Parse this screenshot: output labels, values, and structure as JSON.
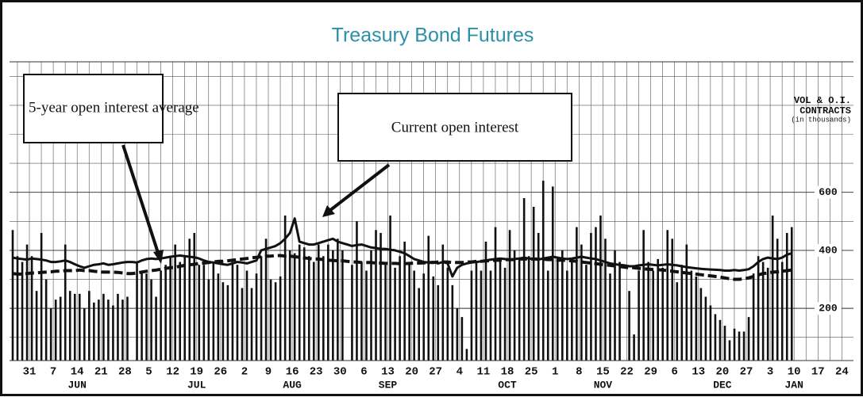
{
  "chart_data": {
    "type": "bar",
    "title": "Treasury Bond Futures",
    "axis_title": [
      "VOL & O.I.",
      "CONTRACTS",
      "(in thousands)"
    ],
    "categories": [
      "31",
      null,
      null,
      null,
      null,
      "7",
      null,
      null,
      null,
      null,
      "14",
      null,
      null,
      null,
      null,
      "21",
      null,
      null,
      null,
      null,
      "28",
      null,
      null,
      null,
      null,
      "5",
      null,
      null,
      null,
      null,
      "12",
      null,
      null,
      null,
      null,
      "19",
      null,
      null,
      null,
      null,
      "26",
      null,
      null,
      null,
      null,
      "2",
      null,
      null,
      null,
      null,
      "9",
      null,
      null,
      null,
      null,
      "16",
      null,
      null,
      null,
      null,
      "23",
      null,
      null,
      null,
      null,
      "30",
      null,
      null,
      null,
      null,
      "6",
      null,
      null,
      null,
      null,
      "13",
      null,
      null,
      null,
      null,
      "20",
      null,
      null,
      null,
      null,
      "27",
      null,
      null,
      null,
      null,
      "4",
      null,
      null,
      null,
      null,
      "11",
      null,
      null,
      null,
      null,
      "18",
      null,
      null,
      null,
      null,
      "25",
      null,
      null,
      null,
      null,
      "1",
      null,
      null,
      null,
      null,
      "8",
      null,
      null,
      null,
      null,
      "15",
      null,
      null,
      null,
      null,
      "22",
      null,
      null,
      null,
      null,
      "29",
      null,
      null,
      null,
      null,
      "6",
      null,
      null,
      null,
      null,
      "13",
      null,
      null,
      null,
      null,
      "20",
      null,
      null,
      null,
      null,
      "27",
      null,
      null,
      null,
      null,
      "3",
      null,
      null,
      null,
      null,
      "10",
      null,
      null,
      null,
      null,
      "17",
      null,
      null,
      null,
      null,
      "24",
      null,
      null,
      null,
      null
    ],
    "month_labels": [
      null,
      null,
      "JUN",
      null,
      null,
      null,
      null,
      "JUL",
      null,
      null,
      null,
      "AUG",
      null,
      null,
      null,
      "SEP",
      null,
      null,
      null,
      null,
      "OCT",
      null,
      null,
      null,
      "NOV",
      null,
      null,
      null,
      null,
      "DEC",
      null,
      null,
      "JAN",
      null,
      null
    ],
    "series": [
      {
        "type": "bar",
        "color": "#111111",
        "values": [
          470,
          380,
          360,
          420,
          380,
          260,
          460,
          300,
          200,
          230,
          240,
          420,
          260,
          250,
          250,
          200,
          260,
          220,
          230,
          250,
          230,
          210,
          250,
          230,
          240,
          null,
          360,
          330,
          320,
          300,
          240,
          330,
          350,
          380,
          420,
          360,
          380,
          440,
          460,
          350,
          350,
          300,
          360,
          320,
          290,
          280,
          360,
          350,
          270,
          330,
          270,
          320,
          380,
          440,
          300,
          290,
          310,
          520,
          400,
          390,
          420,
          410,
          380,
          360,
          420,
          380,
          420,
          400,
          440,
          400,
          null,
          350,
          500,
          360,
          330,
          400,
          470,
          460,
          350,
          520,
          340,
          380,
          430,
          360,
          330,
          270,
          320,
          450,
          310,
          280,
          420,
          340,
          280,
          200,
          170,
          60,
          330,
          360,
          330,
          430,
          330,
          480,
          370,
          340,
          470,
          400,
          370,
          580,
          380,
          550,
          460,
          640,
          330,
          620,
          370,
          400,
          330,
          370,
          480,
          420,
          350,
          460,
          480,
          520,
          440,
          320,
          400,
          360,
          null,
          260,
          110,
          330,
          470,
          360,
          330,
          370,
          340,
          470,
          440,
          290,
          350,
          420,
          330,
          310,
          270,
          240,
          210,
          180,
          160,
          140,
          90,
          130,
          120,
          120,
          170,
          320,
          380,
          360,
          340,
          520,
          440,
          360,
          460,
          480,
          null,
          null,
          null,
          null,
          null,
          null,
          null,
          null,
          null,
          null,
          null
        ]
      },
      {
        "type": "line",
        "name": "Current open interest",
        "style": "solid",
        "color": "#111111",
        "values": [
          375,
          372,
          370,
          368,
          372,
          370,
          368,
          365,
          360,
          360,
          362,
          365,
          360,
          352,
          345,
          340,
          345,
          350,
          352,
          355,
          350,
          352,
          355,
          358,
          360,
          360,
          358,
          365,
          370,
          372,
          370,
          372,
          375,
          378,
          380,
          382,
          380,
          378,
          376,
          372,
          365,
          360,
          358,
          355,
          352,
          350,
          355,
          360,
          358,
          355,
          360,
          365,
          400,
          405,
          410,
          415,
          425,
          440,
          460,
          510,
          430,
          425,
          420,
          420,
          425,
          430,
          435,
          440,
          430,
          425,
          420,
          415,
          418,
          420,
          415,
          410,
          408,
          405,
          405,
          402,
          400,
          395,
          390,
          380,
          370,
          365,
          360,
          358,
          360,
          355,
          360,
          355,
          310,
          340,
          350,
          355,
          358,
          360,
          362,
          365,
          368,
          370,
          372,
          370,
          368,
          370,
          372,
          375,
          372,
          370,
          368,
          372,
          375,
          378,
          375,
          372,
          370,
          372,
          375,
          378,
          375,
          372,
          370,
          365,
          360,
          355,
          352,
          350,
          348,
          345,
          345,
          348,
          350,
          352,
          350,
          348,
          350,
          352,
          350,
          348,
          345,
          342,
          340,
          338,
          336,
          335,
          334,
          333,
          332,
          330,
          330,
          332,
          330,
          332,
          335,
          345,
          360,
          370,
          375,
          372,
          370,
          375,
          385,
          390,
          null,
          null,
          null,
          null,
          null,
          null,
          null,
          null,
          null,
          null,
          null
        ]
      },
      {
        "type": "line",
        "name": "5-year open interest average",
        "style": "dashed",
        "color": "#111111",
        "values": [
          320,
          318,
          318,
          320,
          322,
          322,
          324,
          325,
          326,
          328,
          328,
          330,
          330,
          330,
          332,
          330,
          330,
          328,
          326,
          325,
          325,
          325,
          324,
          322,
          320,
          320,
          322,
          325,
          328,
          330,
          332,
          335,
          338,
          340,
          342,
          345,
          348,
          350,
          352,
          355,
          356,
          358,
          360,
          362,
          362,
          364,
          366,
          368,
          370,
          372,
          374,
          376,
          378,
          380,
          380,
          382,
          382,
          380,
          380,
          378,
          376,
          374,
          372,
          370,
          370,
          368,
          366,
          365,
          364,
          364,
          362,
          360,
          360,
          358,
          358,
          358,
          356,
          356,
          355,
          355,
          355,
          354,
          354,
          355,
          356,
          356,
          357,
          358,
          358,
          360,
          360,
          360,
          358,
          358,
          358,
          360,
          360,
          362,
          362,
          364,
          364,
          366,
          366,
          368,
          368,
          368,
          370,
          370,
          370,
          370,
          370,
          370,
          368,
          368,
          366,
          366,
          365,
          364,
          362,
          360,
          358,
          356,
          354,
          352,
          350,
          348,
          346,
          344,
          342,
          340,
          340,
          338,
          336,
          335,
          334,
          333,
          332,
          330,
          328,
          326,
          324,
          322,
          320,
          318,
          316,
          314,
          312,
          310,
          308,
          305,
          302,
          300,
          300,
          302,
          305,
          310,
          315,
          320,
          322,
          325,
          326,
          328,
          330,
          332,
          null,
          null,
          null,
          null,
          null,
          null,
          null,
          null,
          null,
          null,
          null
        ]
      }
    ],
    "ylim": [
      20,
      1050
    ],
    "yticks": [
      200,
      400,
      600
    ],
    "grid": true
  }
}
